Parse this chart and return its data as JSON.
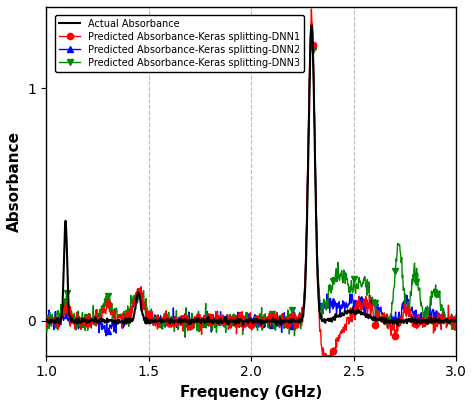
{
  "title": "",
  "xlabel": "Frequency (GHz)",
  "ylabel": "Absorbance",
  "xlim": [
    1.0,
    3.0
  ],
  "ylim": [
    -0.15,
    1.35
  ],
  "yticks": [
    0,
    1
  ],
  "xticks": [
    1.0,
    1.5,
    2.0,
    2.5,
    3.0
  ],
  "colors": {
    "actual": "#000000",
    "dnn1": "#ff0000",
    "dnn2": "#0000ff",
    "dnn3": "#008800"
  },
  "legend": [
    "Actual Absorbance",
    "Predicted Absorbance-Keras splitting-DNN1",
    "Predicted Absorbance-Keras splitting-DNN2",
    "Predicted Absorbance-Keras splitting-DNN3"
  ],
  "grid_color": "#bbbbbb",
  "background": "#ffffff",
  "linewidth": 1.0,
  "marker_size": 4.5,
  "dpi": 100
}
